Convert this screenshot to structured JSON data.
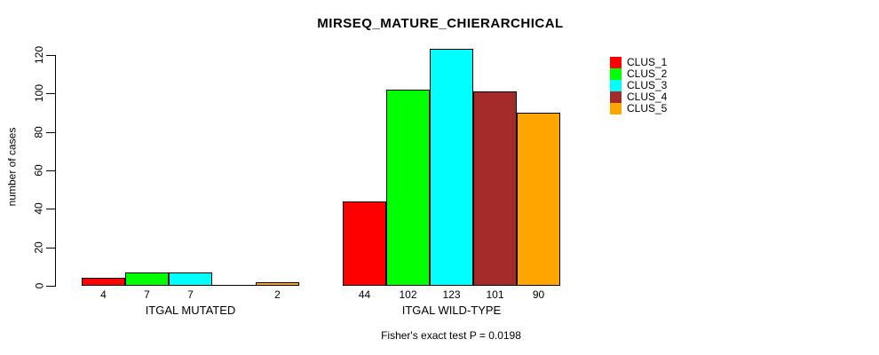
{
  "chart_data": {
    "type": "bar",
    "title": "MIRSEQ_MATURE_CHIERARCHICAL",
    "ylabel": "number of cases",
    "xlabel": "",
    "ylim": [
      0,
      120
    ],
    "yticks": [
      0,
      20,
      40,
      60,
      80,
      100,
      120
    ],
    "grid": false,
    "legend_position": "right",
    "groups": [
      "ITGAL MUTATED",
      "ITGAL WILD-TYPE"
    ],
    "series": [
      {
        "name": "CLUS_1",
        "color": "#FF0000",
        "values": [
          4,
          44
        ]
      },
      {
        "name": "CLUS_2",
        "color": "#00FF00",
        "values": [
          7,
          102
        ]
      },
      {
        "name": "CLUS_3",
        "color": "#00FFFF",
        "values": [
          7,
          123
        ]
      },
      {
        "name": "CLUS_4",
        "color": "#A52A2A",
        "values": [
          0,
          101
        ]
      },
      {
        "name": "CLUS_5",
        "color": "#FFA500",
        "values": [
          2,
          90
        ]
      }
    ],
    "bar_labels": [
      [
        "4",
        "7",
        "7",
        "",
        "2"
      ],
      [
        "44",
        "102",
        "123",
        "101",
        "90"
      ]
    ],
    "annotation": "Fisher's exact test P = 0.0198"
  }
}
